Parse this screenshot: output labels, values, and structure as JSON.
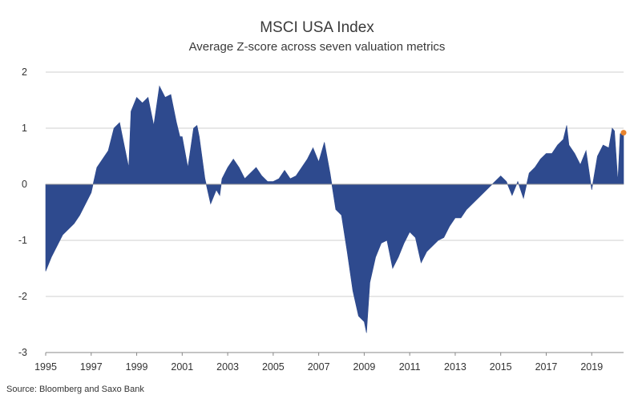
{
  "chart_data": {
    "type": "area",
    "title": "MSCI USA Index",
    "subtitle": "Average Z-score across seven valuation metrics",
    "source": "Source: Bloomberg and Saxo Bank",
    "xlabel": "",
    "ylabel": "",
    "xlim": [
      1995,
      2020.4
    ],
    "ylim": [
      -3,
      2
    ],
    "y_ticks": [
      2,
      1,
      0,
      -1,
      -2,
      -3
    ],
    "x_ticks": [
      1995,
      1997,
      1999,
      2001,
      2003,
      2005,
      2007,
      2009,
      2011,
      2013,
      2015,
      2017,
      2019
    ],
    "grid": "horizontal",
    "legend": "none",
    "colors": {
      "area": "#2e4a8e",
      "last_point": "#e8842f",
      "grid": "#cfcfcf"
    },
    "series": [
      {
        "x": [
          1995.0,
          1995.25,
          1995.5,
          1995.75,
          1996.0,
          1996.25,
          1996.5,
          1996.75,
          1997.0,
          1997.25,
          1997.5,
          1997.75,
          1998.0,
          1998.25,
          1998.5,
          1998.65,
          1998.75,
          1999.0,
          1999.25,
          1999.5,
          1999.75,
          2000.0,
          2000.25,
          2000.5,
          2000.75,
          2000.9,
          2001.0,
          2001.25,
          2001.5,
          2001.65,
          2001.75,
          2002.0,
          2002.25,
          2002.5,
          2002.65,
          2002.75,
          2003.0,
          2003.25,
          2003.5,
          2003.75,
          2004.0,
          2004.25,
          2004.5,
          2004.75,
          2005.0,
          2005.25,
          2005.5,
          2005.75,
          2006.0,
          2006.25,
          2006.5,
          2006.75,
          2007.0,
          2007.25,
          2007.5,
          2007.75,
          2008.0,
          2008.25,
          2008.5,
          2008.75,
          2009.0,
          2009.1,
          2009.25,
          2009.5,
          2009.75,
          2010.0,
          2010.25,
          2010.5,
          2010.75,
          2011.0,
          2011.25,
          2011.5,
          2011.75,
          2012.0,
          2012.25,
          2012.5,
          2012.75,
          2013.0,
          2013.25,
          2013.5,
          2013.75,
          2014.0,
          2014.25,
          2014.5,
          2014.75,
          2015.0,
          2015.25,
          2015.5,
          2015.75,
          2016.0,
          2016.25,
          2016.5,
          2016.75,
          2017.0,
          2017.25,
          2017.5,
          2017.75,
          2017.9,
          2018.0,
          2018.25,
          2018.5,
          2018.75,
          2019.0,
          2019.25,
          2019.5,
          2019.75,
          2019.9,
          2020.0,
          2020.15,
          2020.25,
          2020.4
        ],
        "y": [
          -1.55,
          -1.3,
          -1.1,
          -0.9,
          -0.8,
          -0.7,
          -0.55,
          -0.35,
          -0.15,
          0.3,
          0.45,
          0.6,
          1.0,
          1.1,
          0.6,
          0.3,
          1.3,
          1.55,
          1.45,
          1.55,
          1.05,
          1.75,
          1.55,
          1.6,
          1.1,
          0.85,
          0.85,
          0.3,
          1.0,
          1.05,
          0.85,
          0.1,
          -0.35,
          -0.1,
          -0.2,
          0.1,
          0.3,
          0.45,
          0.3,
          0.1,
          0.2,
          0.3,
          0.15,
          0.05,
          0.05,
          0.1,
          0.25,
          0.1,
          0.15,
          0.3,
          0.45,
          0.65,
          0.4,
          0.75,
          0.2,
          -0.45,
          -0.55,
          -1.2,
          -1.9,
          -2.35,
          -2.45,
          -2.65,
          -1.75,
          -1.3,
          -1.05,
          -1.0,
          -1.5,
          -1.3,
          -1.05,
          -0.85,
          -0.95,
          -1.4,
          -1.2,
          -1.1,
          -1.0,
          -0.95,
          -0.75,
          -0.6,
          -0.6,
          -0.45,
          -0.35,
          -0.25,
          -0.15,
          -0.05,
          0.05,
          0.15,
          0.05,
          -0.2,
          0.05,
          -0.25,
          0.2,
          0.3,
          0.45,
          0.55,
          0.55,
          0.7,
          0.8,
          1.05,
          0.7,
          0.55,
          0.35,
          0.6,
          -0.1,
          0.5,
          0.7,
          0.65,
          1.0,
          0.95,
          0.05,
          0.9,
          0.92
        ]
      }
    ],
    "last_point": {
      "x": 2020.4,
      "y": 0.92
    }
  }
}
